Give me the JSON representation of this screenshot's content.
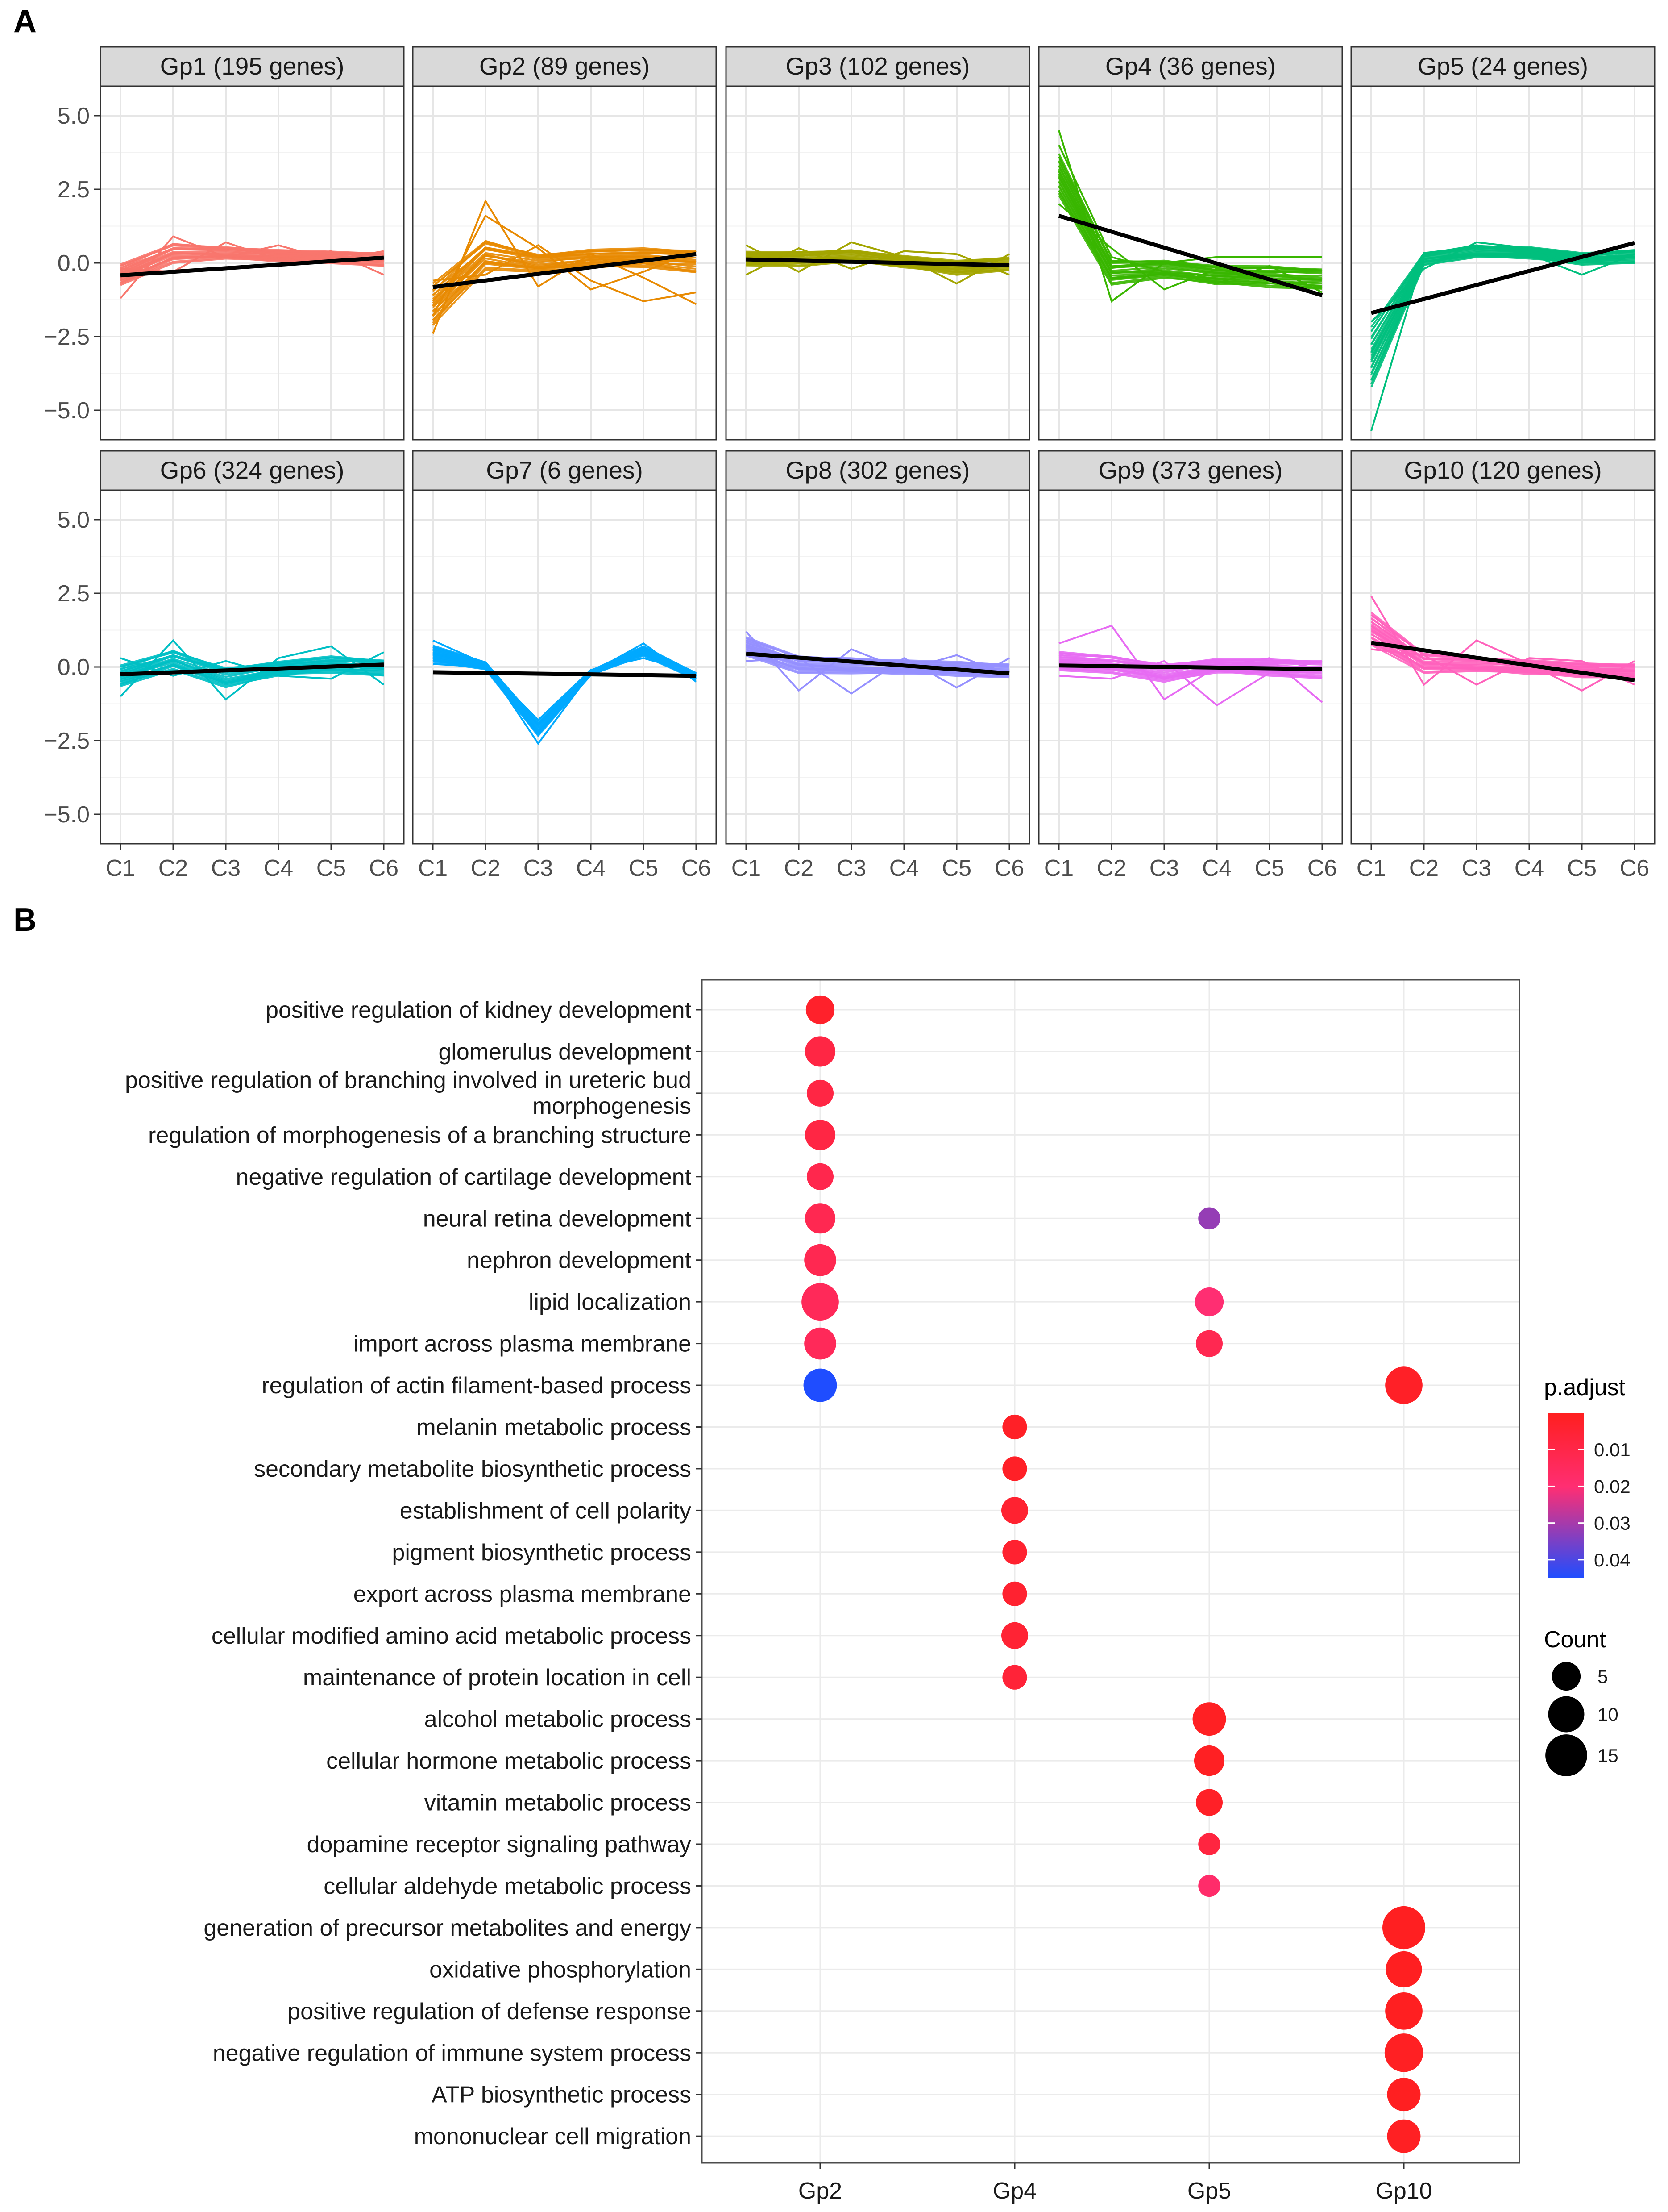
{
  "chart_data": [
    {
      "panel_label": "A",
      "type": "line",
      "facet_title_template": "{name} ({n} genes)",
      "genes_word": "genes",
      "xcategories": [
        "C1",
        "C2",
        "C3",
        "C4",
        "C5",
        "C6"
      ],
      "ylim": [
        -6,
        6
      ],
      "yticks": [
        5.0,
        2.5,
        0.0,
        -2.5,
        -5.0
      ],
      "ytick_labels": [
        "5.0",
        "2.5",
        "0.0",
        "−2.5",
        "−5.0"
      ],
      "grid": true,
      "facets": [
        {
          "name": "Gp1",
          "n_genes": 195,
          "color": "#F8766D",
          "profile": [
            -0.4,
            0.35,
            0.35,
            0.25,
            0.2,
            0.15
          ],
          "spread": [
            0.45,
            0.4,
            0.3,
            0.25,
            0.25,
            0.3
          ],
          "outliers": [
            [
              -1.2,
              0.9,
              0.2,
              0.6,
              0.1,
              0.4
            ],
            [
              -0.2,
              -0.3,
              0.7,
              0.1,
              0.4,
              -0.4
            ]
          ],
          "trend": [
            -0.42,
            0.18
          ]
        },
        {
          "name": "Gp2",
          "n_genes": 89,
          "color": "#E88A02",
          "profile": [
            -1.4,
            0.3,
            0.0,
            0.15,
            0.2,
            0.1
          ],
          "spread": [
            0.9,
            0.6,
            0.45,
            0.4,
            0.4,
            0.5
          ],
          "outliers": [
            [
              -2.4,
              2.1,
              -0.8,
              0.3,
              -0.5,
              -1.4
            ],
            [
              -1.8,
              1.6,
              0.5,
              -0.9,
              -0.3,
              0.4
            ],
            [
              -0.6,
              -0.4,
              0.6,
              -0.6,
              -1.3,
              -1.0
            ]
          ],
          "trend": [
            -0.82,
            0.3
          ]
        },
        {
          "name": "Gp3",
          "n_genes": 102,
          "color": "#A3A500",
          "profile": [
            0.15,
            0.15,
            0.25,
            0.05,
            -0.15,
            0.0
          ],
          "spread": [
            0.3,
            0.3,
            0.3,
            0.25,
            0.3,
            0.3
          ],
          "outliers": [
            [
              0.6,
              -0.3,
              0.7,
              0.2,
              -0.7,
              0.3
            ],
            [
              -0.4,
              0.5,
              -0.2,
              0.4,
              0.3,
              -0.4
            ]
          ],
          "trend": [
            0.12,
            -0.08
          ]
        },
        {
          "name": "Gp4",
          "n_genes": 36,
          "color": "#39B600",
          "profile": [
            3.0,
            -0.3,
            -0.2,
            -0.4,
            -0.45,
            -0.5
          ],
          "spread": [
            0.9,
            0.5,
            0.45,
            0.4,
            0.45,
            0.45
          ],
          "outliers": [
            [
              4.5,
              -1.3,
              0.0,
              0.2,
              0.2,
              0.2
            ],
            [
              2.0,
              0.5,
              -0.9,
              -0.2,
              -0.6,
              -0.8
            ],
            [
              4.0,
              0.2,
              -0.3,
              -0.7,
              -0.1,
              -1.0
            ]
          ],
          "trend": [
            1.6,
            -1.1
          ]
        },
        {
          "name": "Gp5",
          "n_genes": 24,
          "color": "#00BF7D",
          "profile": [
            -3.2,
            0.15,
            0.4,
            0.35,
            0.15,
            0.25
          ],
          "spread": [
            1.3,
            0.25,
            0.3,
            0.25,
            0.25,
            0.3
          ],
          "outliers": [
            [
              -5.7,
              0.3,
              0.6,
              0.3,
              -0.4,
              0.3
            ],
            [
              -2.0,
              -0.2,
              0.7,
              0.5,
              0.0,
              0.3
            ]
          ],
          "trend": [
            -1.7,
            0.68
          ]
        },
        {
          "name": "Gp6",
          "n_genes": 324,
          "color": "#00BFC4",
          "profile": [
            -0.3,
            0.25,
            -0.35,
            -0.05,
            0.1,
            0.0
          ],
          "spread": [
            0.45,
            0.4,
            0.5,
            0.3,
            0.35,
            0.35
          ],
          "outliers": [
            [
              -1.0,
              0.9,
              -1.1,
              0.3,
              0.7,
              -0.6
            ],
            [
              0.3,
              -0.3,
              0.2,
              -0.3,
              -0.4,
              0.5
            ]
          ],
          "trend": [
            -0.25,
            0.08
          ]
        },
        {
          "name": "Gp7",
          "n_genes": 6,
          "color": "#00A9FF",
          "profile": [
            0.45,
            0.05,
            -2.1,
            -0.2,
            0.55,
            -0.3
          ],
          "spread": [
            0.35,
            0.15,
            0.35,
            0.1,
            0.2,
            0.15
          ],
          "outliers": [
            [
              0.9,
              0.1,
              -2.6,
              -0.2,
              0.8,
              -0.5
            ],
            [
              0.1,
              0.0,
              -1.8,
              -0.1,
              0.3,
              -0.2
            ]
          ],
          "trend": [
            -0.18,
            -0.3
          ]
        },
        {
          "name": "Gp8",
          "n_genes": 302,
          "color": "#9590FF",
          "profile": [
            0.7,
            0.1,
            0.05,
            0.0,
            -0.05,
            -0.1
          ],
          "spread": [
            0.4,
            0.35,
            0.4,
            0.3,
            0.3,
            0.3
          ],
          "outliers": [
            [
              1.2,
              -0.8,
              0.6,
              -0.1,
              0.4,
              -0.3
            ],
            [
              0.2,
              0.3,
              -0.9,
              0.3,
              -0.7,
              0.3
            ]
          ],
          "trend": [
            0.45,
            -0.22
          ]
        },
        {
          "name": "Gp9",
          "n_genes": 373,
          "color": "#E76BF3",
          "profile": [
            0.2,
            0.1,
            -0.2,
            0.05,
            0.0,
            -0.05
          ],
          "spread": [
            0.4,
            0.35,
            0.45,
            0.3,
            0.35,
            0.4
          ],
          "outliers": [
            [
              0.8,
              1.4,
              -1.1,
              0.0,
              0.3,
              -1.2
            ],
            [
              -0.3,
              -0.4,
              0.2,
              -1.3,
              -0.2,
              0.2
            ]
          ],
          "trend": [
            0.05,
            -0.07
          ]
        },
        {
          "name": "Gp10",
          "n_genes": 120,
          "color": "#FF62BC",
          "profile": [
            1.3,
            0.15,
            0.1,
            0.0,
            -0.1,
            -0.1
          ],
          "spread": [
            0.7,
            0.4,
            0.35,
            0.3,
            0.3,
            0.3
          ],
          "outliers": [
            [
              2.4,
              -0.6,
              0.9,
              0.1,
              -0.8,
              0.2
            ],
            [
              0.6,
              0.4,
              -0.6,
              0.3,
              0.2,
              -0.6
            ]
          ],
          "trend": [
            0.82,
            -0.45
          ]
        }
      ]
    },
    {
      "panel_label": "B",
      "type": "scatter",
      "x": [
        "Gp2",
        "Gp4",
        "Gp5",
        "Gp10"
      ],
      "terms": [
        "positive regulation of kidney development",
        "glomerulus development",
        "positive regulation of branching involved in ureteric bud morphogenesis",
        "regulation of morphogenesis of a branching structure",
        "negative regulation of cartilage development",
        "neural retina development",
        "nephron development",
        "lipid localization",
        "import across plasma membrane",
        "regulation of actin filament-based process",
        "melanin metabolic process",
        "secondary metabolite biosynthetic process",
        "establishment of cell polarity",
        "pigment biosynthetic process",
        "export across plasma membrane",
        "cellular modified amino acid metabolic process",
        "maintenance of protein location in cell",
        "alcohol metabolic process",
        "cellular hormone metabolic process",
        "vitamin metabolic process",
        "dopamine receptor signaling pathway",
        "cellular aldehyde metabolic process",
        "generation of precursor metabolites and energy",
        "oxidative phosphorylation",
        "positive regulation of defense response",
        "negative regulation of immune system process",
        "ATP biosynthetic process",
        "mononuclear cell migration"
      ],
      "term_display_lines": {
        "2": [
          "positive regulation of branching involved in ureteric bud",
          "morphogenesis"
        ]
      },
      "points": [
        {
          "term": 0,
          "x": "Gp2",
          "count": 5,
          "p_adjust": 0.003
        },
        {
          "term": 1,
          "x": "Gp2",
          "count": 6,
          "p_adjust": 0.009
        },
        {
          "term": 2,
          "x": "Gp2",
          "count": 4,
          "p_adjust": 0.009
        },
        {
          "term": 3,
          "x": "Gp2",
          "count": 6,
          "p_adjust": 0.009
        },
        {
          "term": 4,
          "x": "Gp2",
          "count": 4,
          "p_adjust": 0.011
        },
        {
          "term": 5,
          "x": "Gp2",
          "count": 6,
          "p_adjust": 0.012
        },
        {
          "term": 6,
          "x": "Gp2",
          "count": 7,
          "p_adjust": 0.012
        },
        {
          "term": 7,
          "x": "Gp2",
          "count": 11,
          "p_adjust": 0.014
        },
        {
          "term": 8,
          "x": "Gp2",
          "count": 7,
          "p_adjust": 0.014
        },
        {
          "term": 9,
          "x": "Gp2",
          "count": 8,
          "p_adjust": 0.048
        },
        {
          "term": 5,
          "x": "Gp5",
          "count": 2,
          "p_adjust": 0.032
        },
        {
          "term": 7,
          "x": "Gp5",
          "count": 5,
          "p_adjust": 0.02
        },
        {
          "term": 8,
          "x": "Gp5",
          "count": 4,
          "p_adjust": 0.012
        },
        {
          "term": 9,
          "x": "Gp10",
          "count": 11,
          "p_adjust": 0.002
        },
        {
          "term": 10,
          "x": "Gp4",
          "count": 3,
          "p_adjust": 0.002
        },
        {
          "term": 11,
          "x": "Gp4",
          "count": 3,
          "p_adjust": 0.002
        },
        {
          "term": 12,
          "x": "Gp4",
          "count": 4,
          "p_adjust": 0.004
        },
        {
          "term": 13,
          "x": "Gp4",
          "count": 3,
          "p_adjust": 0.004
        },
        {
          "term": 14,
          "x": "Gp4",
          "count": 3,
          "p_adjust": 0.004
        },
        {
          "term": 15,
          "x": "Gp4",
          "count": 4,
          "p_adjust": 0.005
        },
        {
          "term": 16,
          "x": "Gp4",
          "count": 3,
          "p_adjust": 0.006
        },
        {
          "term": 17,
          "x": "Gp5",
          "count": 8,
          "p_adjust": 0.001
        },
        {
          "term": 18,
          "x": "Gp5",
          "count": 6,
          "p_adjust": 0.001
        },
        {
          "term": 19,
          "x": "Gp5",
          "count": 4,
          "p_adjust": 0.002
        },
        {
          "term": 20,
          "x": "Gp5",
          "count": 2,
          "p_adjust": 0.008
        },
        {
          "term": 21,
          "x": "Gp5",
          "count": 2,
          "p_adjust": 0.018
        },
        {
          "term": 22,
          "x": "Gp10",
          "count": 16,
          "p_adjust": 0.0005
        },
        {
          "term": 23,
          "x": "Gp10",
          "count": 10,
          "p_adjust": 0.0005
        },
        {
          "term": 24,
          "x": "Gp10",
          "count": 11,
          "p_adjust": 0.0005
        },
        {
          "term": 25,
          "x": "Gp10",
          "count": 12,
          "p_adjust": 0.001
        },
        {
          "term": 26,
          "x": "Gp10",
          "count": 8,
          "p_adjust": 0.0005
        },
        {
          "term": 27,
          "x": "Gp10",
          "count": 8,
          "p_adjust": 0.001
        }
      ],
      "color_legend": {
        "title": "p.adjust",
        "range": [
          0.0,
          0.045
        ],
        "ticks": [
          0.01,
          0.02,
          0.03,
          0.04
        ],
        "tick_labels": [
          "0.01",
          "0.02",
          "0.03",
          "0.04"
        ],
        "low_color": "#FF1F1F",
        "mid_color": "#FF2E73",
        "high_color": "#1F4DFF",
        "placement": "right"
      },
      "size_legend": {
        "title": "Count",
        "values": [
          5,
          10,
          15
        ],
        "labels": [
          "5",
          "10",
          "15"
        ],
        "placement": "right"
      },
      "grid": true
    }
  ]
}
